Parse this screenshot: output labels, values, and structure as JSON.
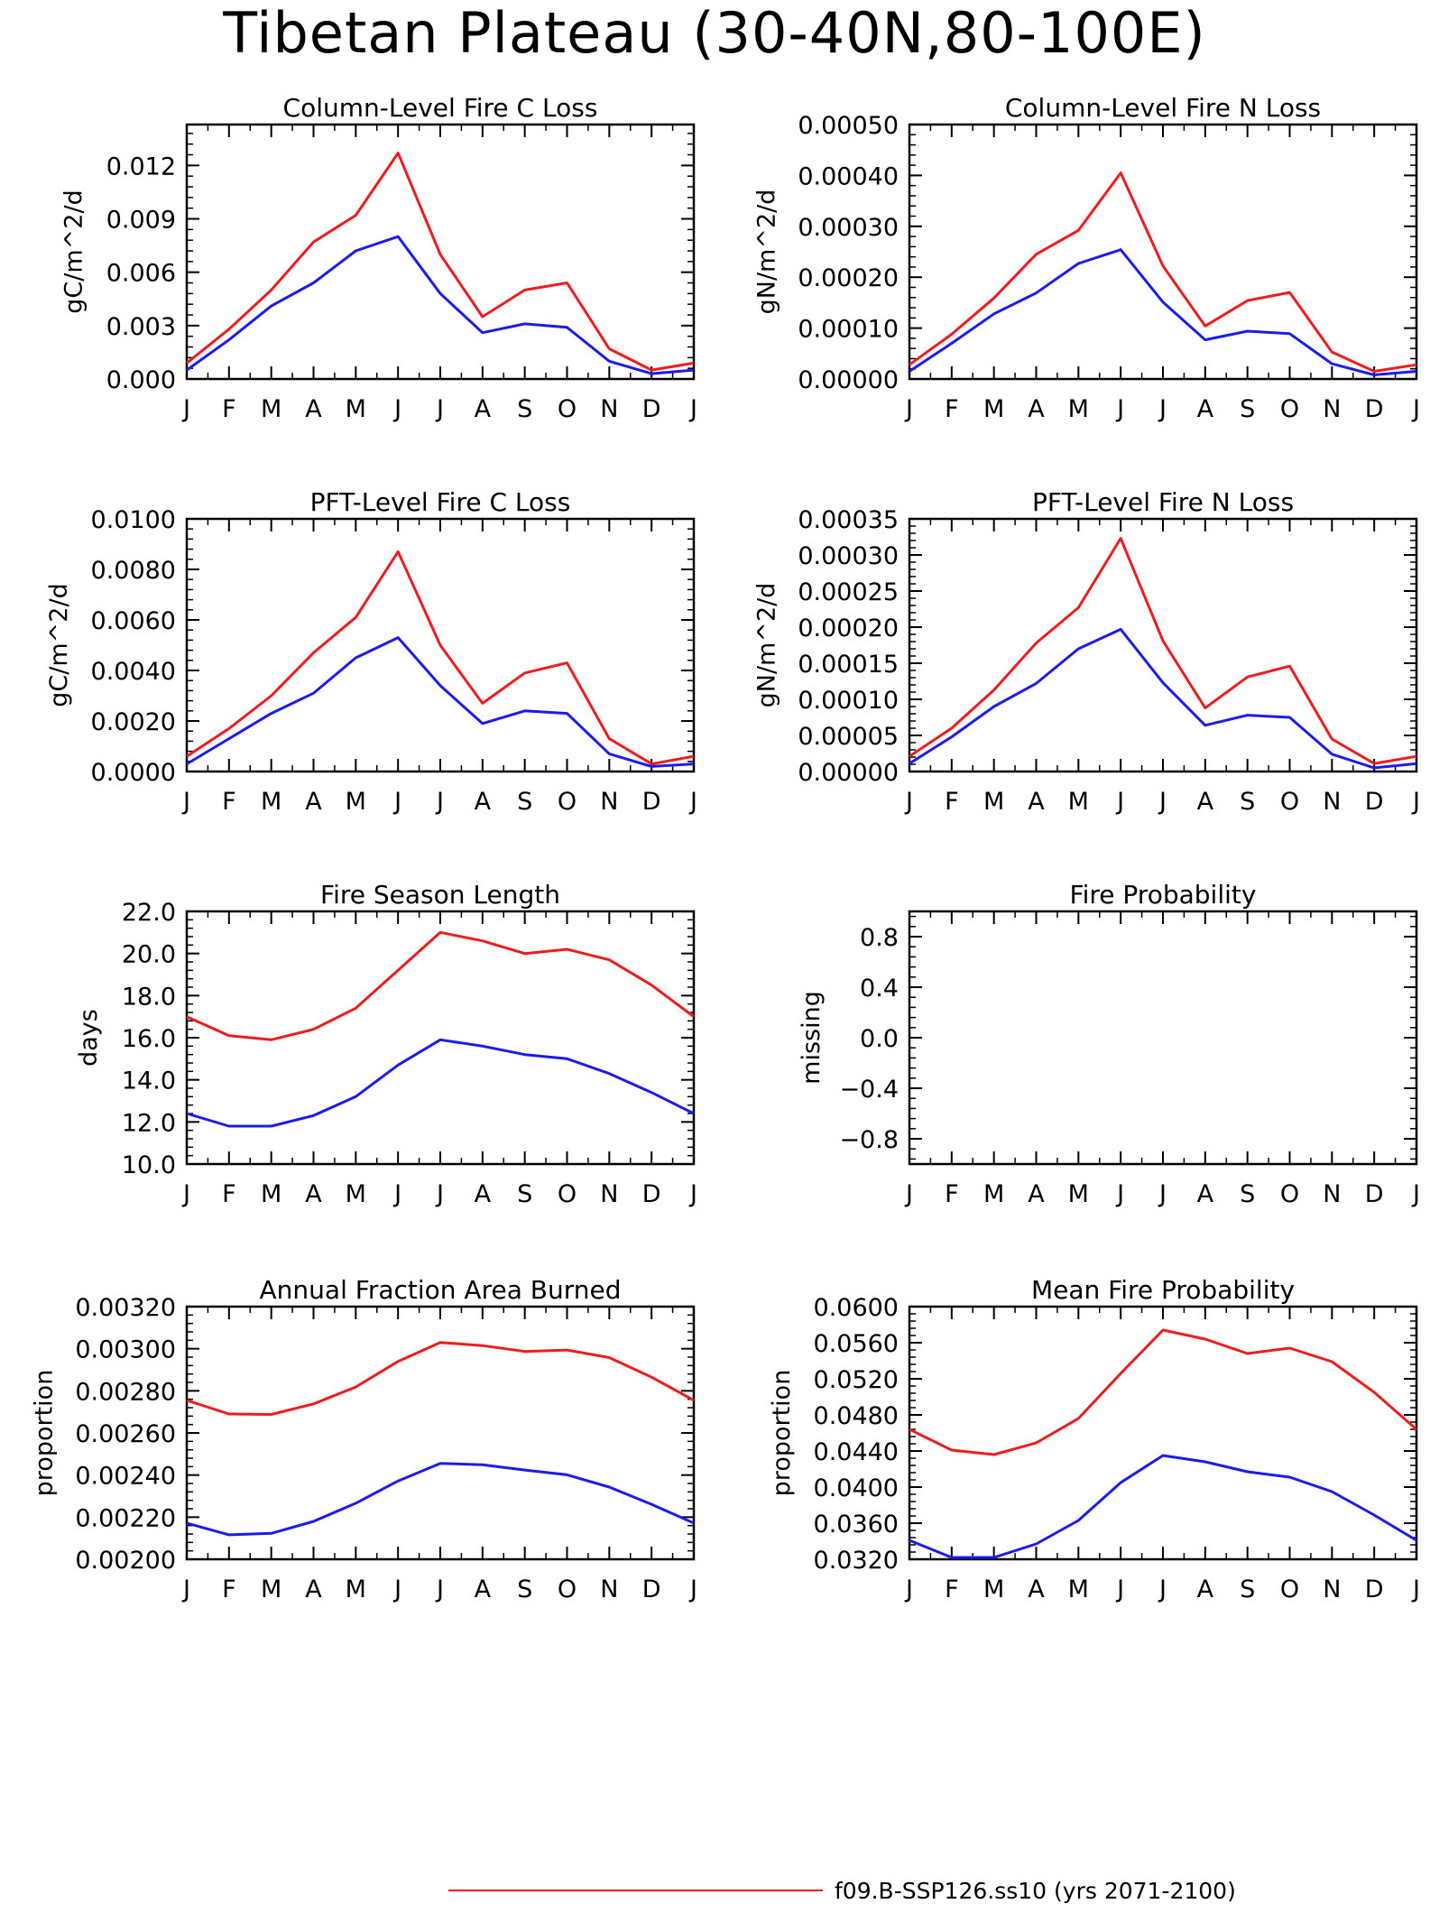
{
  "title": "Tibetan Plateau (30-40N,80-100E)",
  "colors": {
    "series_red": "#ee1c1c",
    "series_blue": "#1b1bee",
    "axis": "#000000"
  },
  "legend": [
    {
      "label": "f09.B-SSP126.ss10 (yrs 2071-2100)",
      "color": "#ee1c1c"
    }
  ],
  "chart_data": [
    {
      "type": "line",
      "title": "Column-Level Fire C Loss",
      "xlabel": "",
      "ylabel": "gC/m^2/d",
      "categories": [
        "J",
        "F",
        "M",
        "A",
        "M",
        "J",
        "J",
        "A",
        "S",
        "O",
        "N",
        "D",
        "J"
      ],
      "ylim": [
        0,
        0.0143
      ],
      "yticks": [
        "0.000",
        "0.003",
        "0.006",
        "0.009",
        "0.012"
      ],
      "ytick_values": [
        0,
        0.003,
        0.006,
        0.009,
        0.012
      ],
      "series": [
        {
          "color": "#ee1c1c",
          "values": [
            0.0009,
            0.0028,
            0.005,
            0.0077,
            0.0092,
            0.0127,
            0.007,
            0.0035,
            0.005,
            0.0054,
            0.0017,
            0.0005,
            0.0009
          ]
        },
        {
          "color": "#1b1bee",
          "values": [
            0.0005,
            0.0022,
            0.0041,
            0.0054,
            0.0072,
            0.008,
            0.0048,
            0.0026,
            0.0031,
            0.0029,
            0.001,
            0.0003,
            0.0005
          ]
        }
      ]
    },
    {
      "type": "line",
      "title": "Column-Level Fire N Loss",
      "xlabel": "",
      "ylabel": "gN/m^2/d",
      "categories": [
        "J",
        "F",
        "M",
        "A",
        "M",
        "J",
        "J",
        "A",
        "S",
        "O",
        "N",
        "D",
        "J"
      ],
      "ylim": [
        0,
        0.0005
      ],
      "yticks": [
        "0.00000",
        "0.00010",
        "0.00020",
        "0.00030",
        "0.00040",
        "0.00050"
      ],
      "ytick_values": [
        0,
        0.0001,
        0.0002,
        0.0003,
        0.0004,
        0.0005
      ],
      "series": [
        {
          "color": "#ee1c1c",
          "values": [
            2.8e-05,
            8.8e-05,
            0.000159,
            0.000245,
            0.000292,
            0.000405,
            0.000222,
            0.000104,
            0.000154,
            0.00017,
            5.3e-05,
            1.5e-05,
            2.8e-05
          ]
        },
        {
          "color": "#1b1bee",
          "values": [
            1.5e-05,
            7e-05,
            0.000128,
            0.000169,
            0.000227,
            0.000254,
            0.000151,
            7.7e-05,
            9.4e-05,
            8.9e-05,
            3e-05,
            8e-06,
            1.5e-05
          ]
        }
      ]
    },
    {
      "type": "line",
      "title": "PFT-Level Fire C Loss",
      "xlabel": "",
      "ylabel": "gC/m^2/d",
      "categories": [
        "J",
        "F",
        "M",
        "A",
        "M",
        "J",
        "J",
        "A",
        "S",
        "O",
        "N",
        "D",
        "J"
      ],
      "ylim": [
        0,
        0.01
      ],
      "yticks": [
        "0.0000",
        "0.0020",
        "0.0040",
        "0.0060",
        "0.0080",
        "0.0100"
      ],
      "ytick_values": [
        0,
        0.002,
        0.004,
        0.006,
        0.008,
        0.01
      ],
      "series": [
        {
          "color": "#ee1c1c",
          "values": [
            0.0006,
            0.0017,
            0.003,
            0.0047,
            0.0061,
            0.0087,
            0.005,
            0.0027,
            0.0039,
            0.0043,
            0.0013,
            0.0003,
            0.0006
          ]
        },
        {
          "color": "#1b1bee",
          "values": [
            0.0003,
            0.0013,
            0.0023,
            0.0031,
            0.0045,
            0.0053,
            0.0034,
            0.0019,
            0.0024,
            0.0023,
            0.0007,
            0.0002,
            0.0003
          ]
        }
      ]
    },
    {
      "type": "line",
      "title": "PFT-Level Fire N Loss",
      "xlabel": "",
      "ylabel": "gN/m^2/d",
      "categories": [
        "J",
        "F",
        "M",
        "A",
        "M",
        "J",
        "J",
        "A",
        "S",
        "O",
        "N",
        "D",
        "J"
      ],
      "ylim": [
        0,
        0.00035
      ],
      "yticks": [
        "0.00000",
        "0.00005",
        "0.00010",
        "0.00015",
        "0.00020",
        "0.00025",
        "0.00030",
        "0.00035"
      ],
      "ytick_values": [
        0,
        5e-05,
        0.0001,
        0.00015,
        0.0002,
        0.00025,
        0.0003,
        0.00035
      ],
      "series": [
        {
          "color": "#ee1c1c",
          "values": [
            2.1e-05,
            6e-05,
            0.000113,
            0.000178,
            0.000227,
            0.000323,
            0.000181,
            8.8e-05,
            0.000131,
            0.000146,
            4.5e-05,
            1.1e-05,
            2.1e-05
          ]
        },
        {
          "color": "#1b1bee",
          "values": [
            1.1e-05,
            4.8e-05,
            9e-05,
            0.000122,
            0.00017,
            0.000197,
            0.000123,
            6.4e-05,
            7.8e-05,
            7.5e-05,
            2.4e-05,
            5e-06,
            1.1e-05
          ]
        }
      ]
    },
    {
      "type": "line",
      "title": "Fire Season Length",
      "xlabel": "",
      "ylabel": "days",
      "categories": [
        "J",
        "F",
        "M",
        "A",
        "M",
        "J",
        "J",
        "A",
        "S",
        "O",
        "N",
        "D",
        "J"
      ],
      "ylim": [
        10,
        22
      ],
      "yticks": [
        "10.0",
        "12.0",
        "14.0",
        "16.0",
        "18.0",
        "20.0",
        "22.0"
      ],
      "ytick_values": [
        10,
        12,
        14,
        16,
        18,
        20,
        22
      ],
      "series": [
        {
          "color": "#ee1c1c",
          "values": [
            17.0,
            16.1,
            15.9,
            16.4,
            17.4,
            19.2,
            21.0,
            20.6,
            20.0,
            20.2,
            19.7,
            18.5,
            17.0
          ]
        },
        {
          "color": "#1b1bee",
          "values": [
            12.4,
            11.8,
            11.8,
            12.3,
            13.2,
            14.7,
            15.9,
            15.6,
            15.2,
            15.0,
            14.3,
            13.4,
            12.4
          ]
        }
      ]
    },
    {
      "type": "line",
      "title": "Fire Probability",
      "xlabel": "",
      "ylabel": "missing",
      "categories": [
        "J",
        "F",
        "M",
        "A",
        "M",
        "J",
        "J",
        "A",
        "S",
        "O",
        "N",
        "D",
        "J"
      ],
      "ylim": [
        -1,
        1
      ],
      "yticks": [
        "−0.8",
        "−0.4",
        "0.0",
        "0.4",
        "0.8"
      ],
      "ytick_values": [
        -0.8,
        -0.4,
        0,
        0.4,
        0.8
      ],
      "series": []
    },
    {
      "type": "line",
      "title": "Annual Fraction Area Burned",
      "xlabel": "",
      "ylabel": "proportion",
      "categories": [
        "J",
        "F",
        "M",
        "A",
        "M",
        "J",
        "J",
        "A",
        "S",
        "O",
        "N",
        "D",
        "J"
      ],
      "ylim": [
        0.002,
        0.0032
      ],
      "yticks": [
        "0.00200",
        "0.00220",
        "0.00240",
        "0.00260",
        "0.00280",
        "0.00300",
        "0.00320"
      ],
      "ytick_values": [
        0.002,
        0.0022,
        0.0024,
        0.0026,
        0.0028,
        0.003,
        0.0032
      ],
      "series": [
        {
          "color": "#ee1c1c",
          "values": [
            0.002755,
            0.00269,
            0.002688,
            0.002738,
            0.002818,
            0.00294,
            0.00303,
            0.003015,
            0.002987,
            0.002994,
            0.002958,
            0.002865,
            0.002755
          ]
        },
        {
          "color": "#1b1bee",
          "values": [
            0.002172,
            0.002116,
            0.002123,
            0.00218,
            0.002266,
            0.002372,
            0.002455,
            0.002449,
            0.002424,
            0.002401,
            0.002343,
            0.002261,
            0.002172
          ]
        }
      ]
    },
    {
      "type": "line",
      "title": "Mean Fire Probability",
      "xlabel": "",
      "ylabel": "proportion",
      "categories": [
        "J",
        "F",
        "M",
        "A",
        "M",
        "J",
        "J",
        "A",
        "S",
        "O",
        "N",
        "D",
        "J"
      ],
      "ylim": [
        0.032,
        0.06
      ],
      "yticks": [
        "0.0320",
        "0.0360",
        "0.0400",
        "0.0440",
        "0.0480",
        "0.0520",
        "0.0560",
        "0.0600"
      ],
      "ytick_values": [
        0.032,
        0.036,
        0.04,
        0.044,
        0.048,
        0.052,
        0.056,
        0.06
      ],
      "series": [
        {
          "color": "#ee1c1c",
          "values": [
            0.0464,
            0.0441,
            0.0436,
            0.0449,
            0.0476,
            0.0526,
            0.0574,
            0.0564,
            0.0548,
            0.0554,
            0.0539,
            0.0505,
            0.0464
          ]
        },
        {
          "color": "#1b1bee",
          "values": [
            0.0341,
            0.0322,
            0.0322,
            0.0337,
            0.0363,
            0.0405,
            0.0435,
            0.0428,
            0.0417,
            0.0411,
            0.0395,
            0.0369,
            0.0341
          ]
        }
      ]
    }
  ]
}
